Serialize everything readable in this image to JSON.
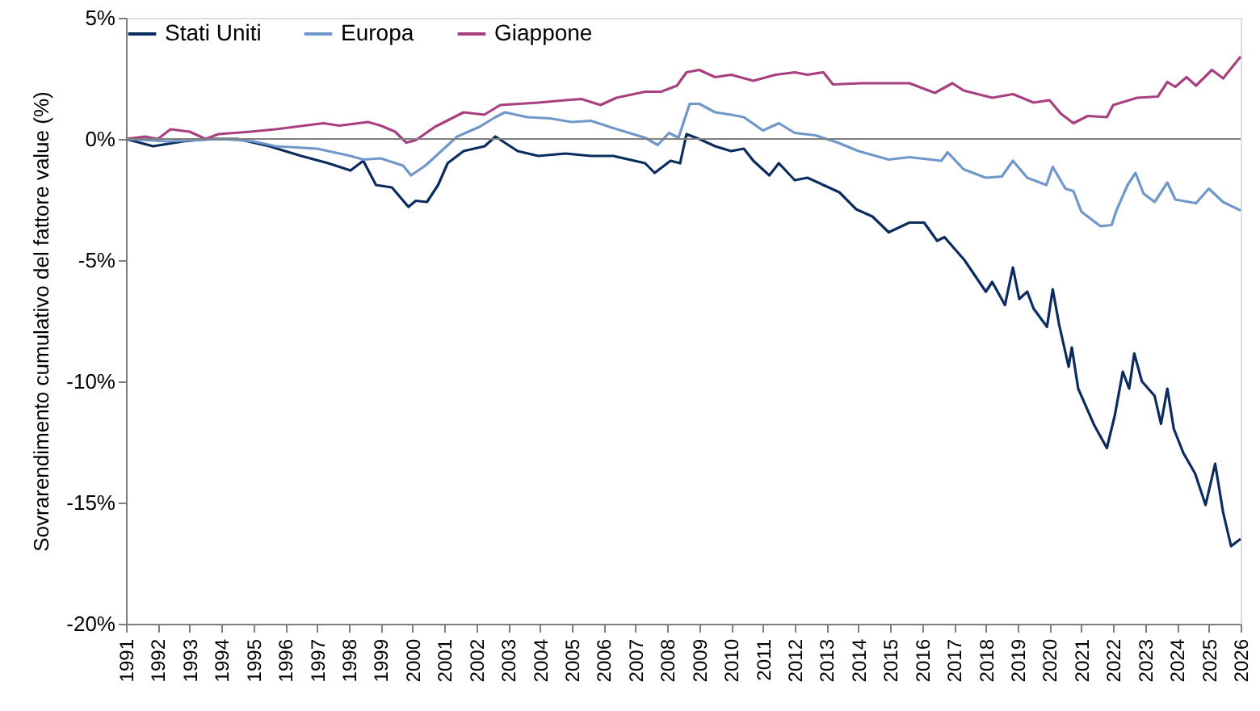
{
  "chart_data": {
    "type": "line",
    "ylabel": "Sovrarendimento cumulativo del fattore value (%)",
    "xlim": [
      1991,
      2026
    ],
    "xticks": [
      1991,
      1992,
      1993,
      1994,
      1995,
      1996,
      1997,
      1998,
      1999,
      2000,
      2001,
      2002,
      2003,
      2004,
      2005,
      2006,
      2007,
      2008,
      2009,
      2010,
      2011,
      2012,
      2013,
      2014,
      2015,
      2016,
      2017,
      2018,
      2019,
      2020,
      2021,
      2022,
      2023,
      2024,
      2025,
      2026
    ],
    "ylim": [
      -20,
      5
    ],
    "yticks": [
      {
        "value": 5,
        "label": "5%"
      },
      {
        "value": 0,
        "label": "0%"
      },
      {
        "value": -5,
        "label": "-5%"
      },
      {
        "value": -10,
        "label": "-10%"
      },
      {
        "value": -15,
        "label": "-15%"
      },
      {
        "value": -20,
        "label": "-20%"
      }
    ],
    "grid": false,
    "legend": "top left",
    "line_style": "solid",
    "marker": "none",
    "ref_lines": [
      {
        "axis": "y",
        "value": 0,
        "color": "#7f7f7f"
      }
    ],
    "series": [
      {
        "name": "Stati Uniti",
        "color": "#0b2c5f",
        "x": [
          1991,
          1991.85,
          1992.8,
          1993.6,
          1994.5,
          1995.5,
          1996.5,
          1997.35,
          1998.05,
          1998.45,
          1998.85,
          1999.35,
          1999.87,
          2000.1,
          2000.45,
          2000.8,
          2001.1,
          2001.6,
          2002.26,
          2002.6,
          2003.3,
          2003.95,
          2004.8,
          2005.6,
          2006.3,
          2007.3,
          2007.6,
          2008.1,
          2008.4,
          2008.6,
          2009,
          2009.5,
          2010,
          2010.4,
          2010.7,
          2011.2,
          2011.5,
          2012,
          2012.4,
          2012.9,
          2013.4,
          2013.93,
          2014.44,
          2014.95,
          2015.6,
          2016.06,
          2016.47,
          2016.7,
          2017.33,
          2018,
          2018.2,
          2018.6,
          2018.85,
          2019.05,
          2019.3,
          2019.5,
          2019.92,
          2020.1,
          2020.3,
          2020.6,
          2020.7,
          2020.9,
          2021.4,
          2021.8,
          2022.05,
          2022.3,
          2022.5,
          2022.66,
          2022.9,
          2023.3,
          2023.5,
          2023.7,
          2023.9,
          2024.2,
          2024.57,
          2024.9,
          2025.2,
          2025.45,
          2025.7,
          2026
        ],
        "values": [
          0,
          -0.3,
          -0.1,
          0,
          0,
          -0.3,
          -0.7,
          -1.0,
          -1.3,
          -0.9,
          -1.9,
          -2.0,
          -2.8,
          -2.55,
          -2.6,
          -1.9,
          -1.0,
          -0.5,
          -0.3,
          0.1,
          -0.5,
          -0.7,
          -0.6,
          -0.7,
          -0.7,
          -1.0,
          -1.4,
          -0.9,
          -1.0,
          0.2,
          0.0,
          -0.3,
          -0.5,
          -0.4,
          -0.9,
          -1.5,
          -1.0,
          -1.7,
          -1.6,
          -1.9,
          -2.2,
          -2.9,
          -3.2,
          -3.85,
          -3.45,
          -3.45,
          -4.2,
          -4.05,
          -5.0,
          -6.3,
          -5.9,
          -6.85,
          -5.3,
          -6.6,
          -6.3,
          -7.0,
          -7.75,
          -6.2,
          -7.65,
          -9.4,
          -8.6,
          -10.3,
          -11.8,
          -12.75,
          -11.4,
          -9.6,
          -10.3,
          -8.85,
          -10.0,
          -10.6,
          -11.75,
          -10.3,
          -11.95,
          -12.95,
          -13.8,
          -15.1,
          -13.4,
          -15.4,
          -16.8,
          -16.5
        ]
      },
      {
        "name": "Europa",
        "color": "#6f97c9",
        "x": [
          1991,
          1992.3,
          1994,
          1995,
          1995.7,
          1997,
          1998.05,
          1998.45,
          1999,
          1999.7,
          1999.95,
          2000.4,
          2000.9,
          2001.4,
          2002.1,
          2002.6,
          2002.9,
          2003.6,
          2004.3,
          2005,
          2005.6,
          2006.3,
          2007.3,
          2007.7,
          2008.05,
          2008.35,
          2008.7,
          2009,
          2009.5,
          2010,
          2010.4,
          2011,
          2011.5,
          2012,
          2012.65,
          2013.35,
          2014,
          2014.95,
          2015.6,
          2016.6,
          2016.8,
          2017.3,
          2018,
          2018.5,
          2018.85,
          2019.3,
          2019.9,
          2020.1,
          2020.5,
          2020.75,
          2021,
          2021.6,
          2021.95,
          2022.1,
          2022.45,
          2022.7,
          2022.95,
          2023.3,
          2023.7,
          2023.95,
          2024.6,
          2025,
          2025.45,
          2026
        ],
        "values": [
          0,
          -0.1,
          0,
          -0.1,
          -0.3,
          -0.4,
          -0.7,
          -0.85,
          -0.8,
          -1.1,
          -1.5,
          -1.1,
          -0.5,
          0.1,
          0.5,
          0.9,
          1.1,
          0.9,
          0.85,
          0.7,
          0.75,
          0.45,
          0.05,
          -0.25,
          0.25,
          0.05,
          1.45,
          1.45,
          1.1,
          1.0,
          0.9,
          0.35,
          0.65,
          0.25,
          0.15,
          -0.15,
          -0.5,
          -0.85,
          -0.75,
          -0.9,
          -0.55,
          -1.25,
          -1.6,
          -1.55,
          -0.9,
          -1.6,
          -1.9,
          -1.15,
          -2.05,
          -2.15,
          -3.0,
          -3.6,
          -3.55,
          -2.95,
          -1.9,
          -1.4,
          -2.25,
          -2.6,
          -1.8,
          -2.5,
          -2.65,
          -2.05,
          -2.6,
          -2.95
        ]
      },
      {
        "name": "Giappone",
        "color": "#a8407f",
        "x": [
          1991,
          1991.6,
          1992,
          1992.4,
          1993,
          1993.5,
          1993.9,
          1994.9,
          1995.7,
          1996.9,
          1997.2,
          1997.7,
          1998.6,
          1999,
          1999.45,
          1999.8,
          2000.1,
          2000.7,
          2001.6,
          2002.25,
          2002.75,
          2003.95,
          2004.8,
          2005.3,
          2005.9,
          2006.4,
          2007.3,
          2007.8,
          2008.3,
          2008.6,
          2009,
          2009.5,
          2010,
          2010.7,
          2011.4,
          2012,
          2012.4,
          2012.9,
          2013.2,
          2014.1,
          2015.6,
          2016.4,
          2016.95,
          2017.3,
          2018.2,
          2018.85,
          2019.5,
          2020,
          2020.35,
          2020.75,
          2021.2,
          2021.8,
          2022,
          2022.75,
          2023.4,
          2023.7,
          2023.95,
          2024.3,
          2024.6,
          2025.1,
          2025.45,
          2026
        ],
        "values": [
          0,
          0.1,
          0,
          0.4,
          0.3,
          0,
          0.2,
          0.3,
          0.4,
          0.6,
          0.65,
          0.55,
          0.7,
          0.55,
          0.3,
          -0.15,
          -0.05,
          0.5,
          1.1,
          1.0,
          1.4,
          1.5,
          1.6,
          1.65,
          1.4,
          1.7,
          1.95,
          1.95,
          2.2,
          2.75,
          2.85,
          2.55,
          2.65,
          2.4,
          2.65,
          2.75,
          2.65,
          2.75,
          2.25,
          2.3,
          2.3,
          1.9,
          2.3,
          2.0,
          1.7,
          1.85,
          1.5,
          1.6,
          1.05,
          0.65,
          0.95,
          0.9,
          1.4,
          1.7,
          1.75,
          2.35,
          2.15,
          2.55,
          2.2,
          2.85,
          2.5,
          3.4
        ]
      }
    ]
  }
}
